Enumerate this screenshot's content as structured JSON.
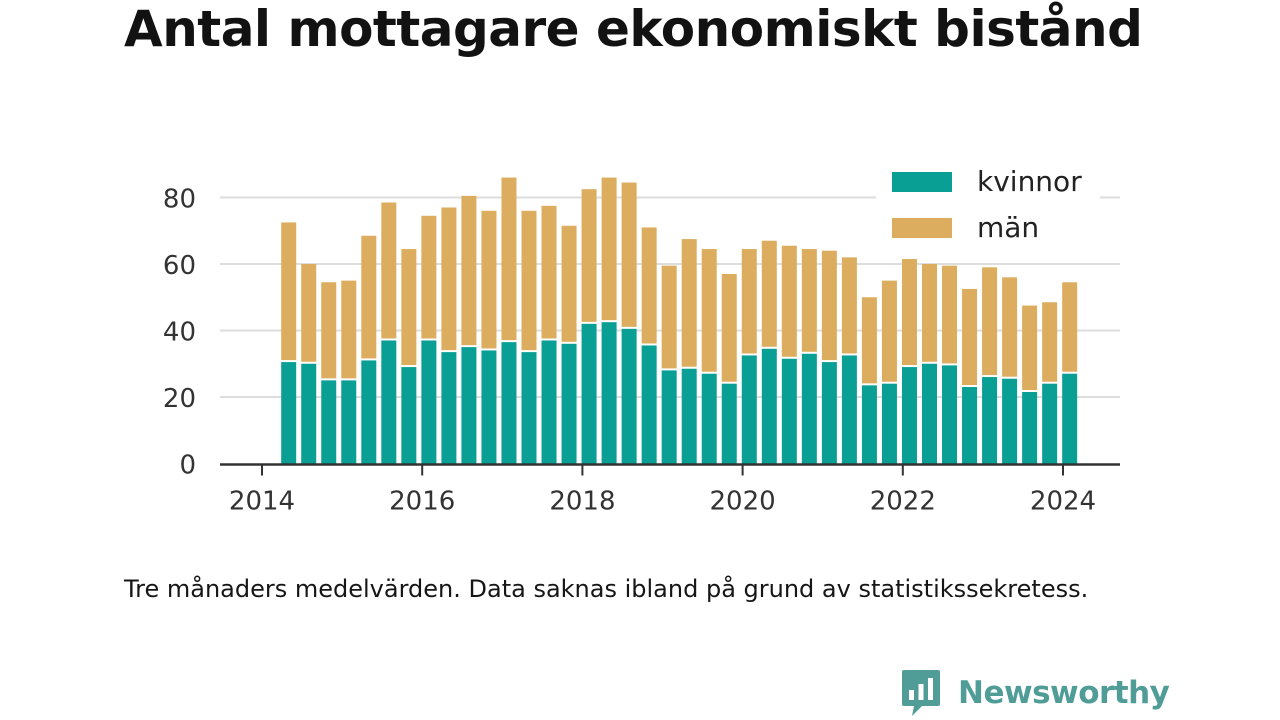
{
  "title": "Antal mottagare ekonomiskt bistånd",
  "note": "Tre månaders medelvärden. Data saknas ibland på grund av statistikssekretess.",
  "brand": {
    "name": "Newsworthy",
    "icon": "newsworthy-logo-icon",
    "color": "#4f9d96"
  },
  "chart_data": {
    "type": "bar",
    "stacked": true,
    "title": "Antal mottagare ekonomiskt bistånd",
    "x": [
      "2014-05",
      "2014-08",
      "2014-11",
      "2015-02",
      "2015-05",
      "2015-08",
      "2015-11",
      "2016-02",
      "2016-05",
      "2016-08",
      "2016-11",
      "2017-02",
      "2017-05",
      "2017-08",
      "2017-11",
      "2018-02",
      "2018-05",
      "2018-08",
      "2018-11",
      "2019-02",
      "2019-05",
      "2019-08",
      "2019-11",
      "2020-02",
      "2020-05",
      "2020-08",
      "2020-11",
      "2021-02",
      "2021-05",
      "2021-08",
      "2021-11",
      "2022-02",
      "2022-05",
      "2022-08",
      "2022-11",
      "2023-02",
      "2023-05",
      "2023-08",
      "2023-11",
      "2024-02"
    ],
    "series": [
      {
        "name": "kvinnor",
        "color": "#0a9f94",
        "values": [
          30.5,
          30,
          25,
          25,
          31,
          37,
          29,
          37,
          33.5,
          35,
          34,
          36.5,
          33.5,
          37,
          36,
          42,
          42.5,
          40.5,
          35.5,
          28,
          28.5,
          27,
          24,
          32.5,
          34.5,
          31.5,
          33,
          30.5,
          32.5,
          23.5,
          24,
          29,
          30,
          29.5,
          23,
          26,
          25.5,
          21.5,
          24,
          27
        ]
      },
      {
        "name": "män",
        "color": "#dcad5e",
        "values": [
          42,
          30,
          29.5,
          30,
          37.5,
          41.5,
          35.5,
          37.5,
          43.5,
          45.5,
          42,
          49.5,
          42.5,
          40.5,
          35.5,
          40.5,
          43.5,
          44,
          35.5,
          31.5,
          39,
          37.5,
          33,
          32,
          32.5,
          34,
          31.5,
          33.5,
          29.5,
          26.5,
          31,
          32.5,
          30,
          30,
          29.5,
          33,
          30.5,
          26,
          24.5,
          27.5
        ]
      }
    ],
    "y_ticks": [
      "0",
      "20",
      "40",
      "60",
      "80"
    ],
    "x_ticks": [
      "2014",
      "2016",
      "2018",
      "2020",
      "2022",
      "2024"
    ],
    "x_tick_dates": [
      "2014-01",
      "2016-01",
      "2018-01",
      "2020-01",
      "2022-01",
      "2024-01"
    ],
    "ylim": [
      0,
      90
    ],
    "xlabel": "",
    "ylabel": "",
    "grid": "horizontal",
    "legend_position": "top-right",
    "colors": {
      "axis": "#333333",
      "grid": "#dddddd",
      "tick_label": "#333333",
      "legend_text": "#222222",
      "bar_separator": "#ffffff"
    }
  }
}
